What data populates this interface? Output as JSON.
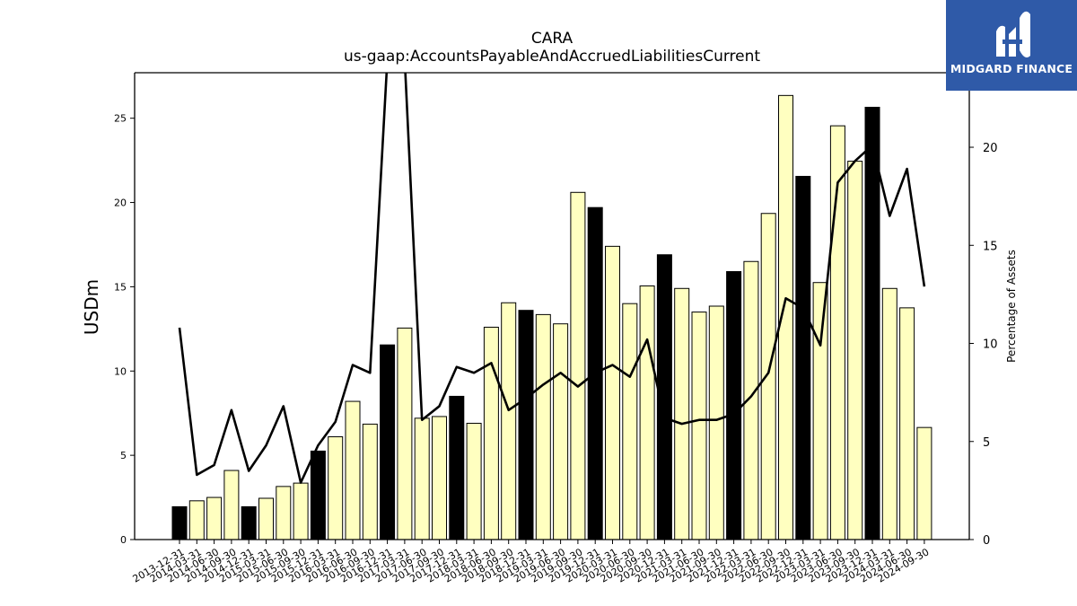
{
  "title": "CARA",
  "subtitle": "us-gaap:AccountsPayableAndAccruedLiabilitiesCurrent",
  "logo": {
    "text": "MIDGARD FINANCE"
  },
  "colors": {
    "bar_light": "#ffffc0",
    "bar_dark": "#000000",
    "line": "#000000",
    "logo_bg": "#2f5aa8"
  },
  "chart_data": {
    "type": "bar",
    "title": "CARA",
    "subtitle": "us-gaap:AccountsPayableAndAccruedLiabilitiesCurrent",
    "ylabel": "USDm",
    "y2label": "Percentage of Assets",
    "ylim": [
      0,
      27.7
    ],
    "y2lim": [
      0,
      23.8
    ],
    "yticks": [
      0,
      5,
      10,
      15,
      20,
      25
    ],
    "y2ticks": [
      0,
      5,
      10,
      15,
      20
    ],
    "categories": [
      "2013-12-31",
      "2014-03-31",
      "2014-06-30",
      "2014-09-30",
      "2014-12-31",
      "2015-03-31",
      "2015-06-30",
      "2015-09-30",
      "2015-12-31",
      "2016-03-31",
      "2016-06-30",
      "2016-09-30",
      "2016-12-31",
      "2017-03-31",
      "2017-06-30",
      "2017-09-30",
      "2017-12-31",
      "2018-03-31",
      "2018-06-30",
      "2018-09-30",
      "2018-12-31",
      "2019-03-31",
      "2019-06-30",
      "2019-09-30",
      "2019-12-31",
      "2020-03-31",
      "2020-06-30",
      "2020-09-30",
      "2020-12-31",
      "2021-03-31",
      "2021-06-30",
      "2021-09-30",
      "2021-12-31",
      "2022-03-31",
      "2022-06-30",
      "2022-09-30",
      "2022-12-31",
      "2023-03-31",
      "2023-06-30",
      "2023-09-30",
      "2023-12-31",
      "2024-03-31",
      "2024-06-30",
      "2024-09-30"
    ],
    "series": [
      {
        "type": "bar",
        "values": [
          1.95,
          2.3,
          2.5,
          4.1,
          1.95,
          2.45,
          3.15,
          3.35,
          5.25,
          6.1,
          8.2,
          6.85,
          11.55,
          12.55,
          7.2,
          7.3,
          8.5,
          6.9,
          12.6,
          14.05,
          13.6,
          13.35,
          12.8,
          20.6,
          19.7,
          17.4,
          14.0,
          15.05,
          16.9,
          14.9,
          13.5,
          13.85,
          15.9,
          16.5,
          19.35,
          26.35,
          21.55,
          15.25,
          24.55,
          22.45,
          25.65,
          14.9,
          13.75,
          6.65
        ],
        "highlight": [
          true,
          false,
          false,
          false,
          true,
          false,
          false,
          false,
          true,
          false,
          false,
          false,
          true,
          false,
          false,
          false,
          true,
          false,
          false,
          false,
          true,
          false,
          false,
          false,
          true,
          false,
          false,
          false,
          true,
          false,
          false,
          false,
          true,
          false,
          false,
          false,
          true,
          false,
          false,
          false,
          true,
          false,
          false,
          false
        ]
      },
      {
        "type": "line",
        "axis": "right",
        "values": [
          10.8,
          3.3,
          3.8,
          6.6,
          3.5,
          4.8,
          6.8,
          2.9,
          4.8,
          6.0,
          8.9,
          8.5,
          24.5,
          24.5,
          6.1,
          6.8,
          8.8,
          8.5,
          9.0,
          6.6,
          7.2,
          7.9,
          8.5,
          7.8,
          8.5,
          8.9,
          8.3,
          10.2,
          6.2,
          5.9,
          6.1,
          6.1,
          6.4,
          7.3,
          8.5,
          12.3,
          11.8,
          9.9,
          18.2,
          19.3,
          20.1,
          16.5,
          18.9,
          12.9
        ]
      }
    ],
    "grid": false,
    "legend": "none"
  }
}
